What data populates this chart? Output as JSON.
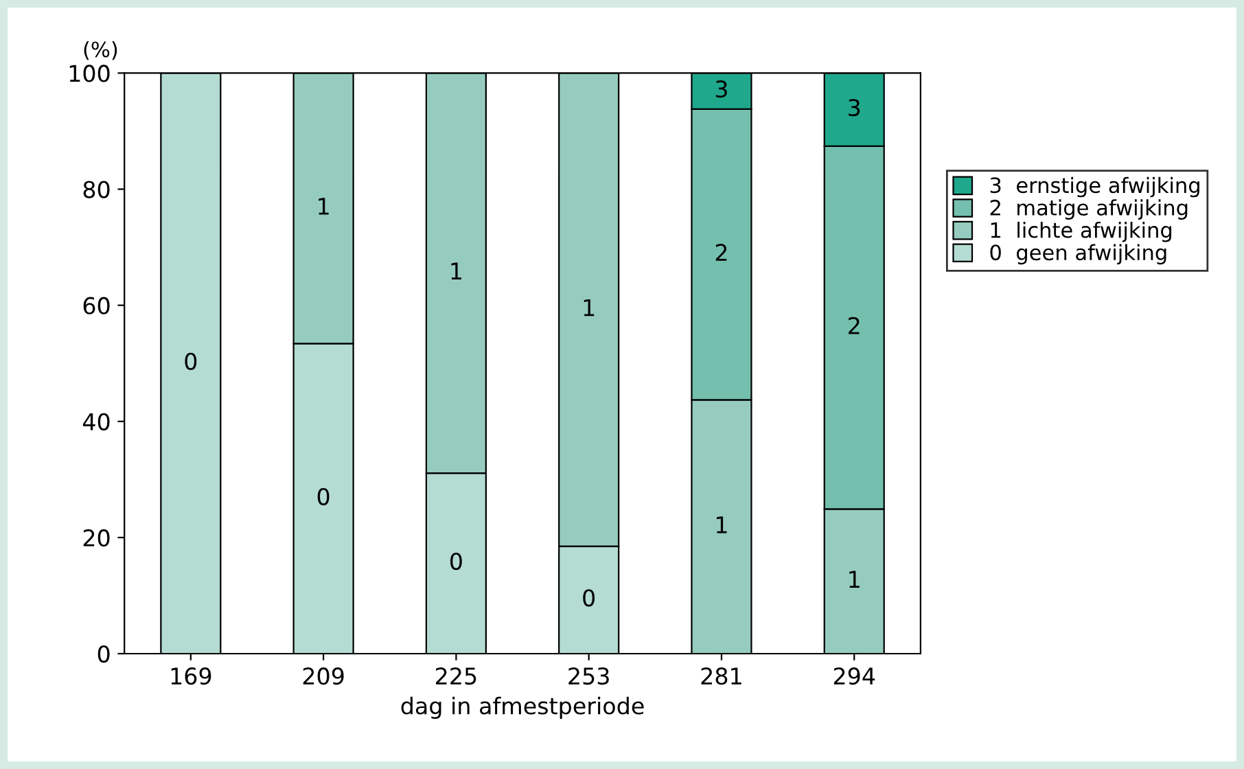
{
  "chart_data": {
    "type": "bar",
    "stacked": true,
    "categories": [
      "169",
      "209",
      "225",
      "253",
      "281",
      "294"
    ],
    "series": [
      {
        "name": "0  geen afwijking",
        "color": "#b5dcd2",
        "values": [
          100,
          53.4,
          31.1,
          18.5,
          null,
          null
        ]
      },
      {
        "name": "1  lichte afwijking",
        "color": "#96ccbf",
        "values": [
          null,
          46.6,
          68.9,
          81.5,
          43.7,
          24.9
        ]
      },
      {
        "name": "2  matige afwijking",
        "color": "#74bfae",
        "values": [
          null,
          null,
          null,
          null,
          50.1,
          62.5
        ]
      },
      {
        "name": "3  ernstige afwijking",
        "color": "#20a88c",
        "values": [
          null,
          null,
          null,
          null,
          6.2,
          12.6
        ]
      }
    ],
    "annotations": [
      "0",
      "0",
      "1",
      "0",
      "1",
      "0",
      "1",
      "1",
      "2",
      "3",
      "1",
      "2",
      "3"
    ],
    "ylabel": "(%)",
    "xlabel": "dag in afmestperiode",
    "ylim": [
      0,
      100
    ],
    "yticks": [
      0,
      20,
      40,
      60,
      80,
      100
    ],
    "grid": false,
    "legend": "right"
  }
}
